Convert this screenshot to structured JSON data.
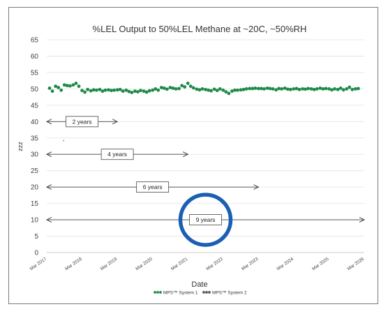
{
  "chart_data": {
    "type": "scatter",
    "title": "%LEL Output to 50%LEL Methane at ~20C, ~50%RH",
    "xlabel": "Date",
    "ylabel": "zzz",
    "ylim": [
      0,
      65
    ],
    "yticks": [
      0,
      5,
      10,
      15,
      20,
      25,
      30,
      35,
      40,
      45,
      50,
      55,
      60,
      65
    ],
    "xlim": [
      2017.17,
      2026.17
    ],
    "xtick_labels": [
      "Mar 2017",
      "Mar 2018",
      "Mar 2019",
      "Mar 2020",
      "Mar 2021",
      "Mar 2022",
      "Mar 2023",
      "Mar 2024",
      "Mar 2025",
      "Mar 2026"
    ],
    "grid": "horizontal",
    "legend_position": "bottom",
    "colors": {
      "series1": "#1e8a4a",
      "series2": "#555555",
      "circle": "#1a5fb4"
    },
    "series": [
      {
        "name": "MPS™ System 1",
        "x": [
          2017.25,
          2017.33,
          2017.42,
          2017.5,
          2017.58,
          2017.67,
          2017.75,
          2017.83,
          2017.92,
          2018.0,
          2018.08,
          2018.17,
          2018.25,
          2018.33,
          2018.42,
          2018.5,
          2018.58,
          2018.67,
          2018.75,
          2018.83,
          2018.92,
          2019.0,
          2019.08,
          2019.17,
          2019.25,
          2019.33,
          2019.42,
          2019.5,
          2019.58,
          2019.67,
          2019.75,
          2019.83,
          2019.92,
          2020.0,
          2020.08,
          2020.17,
          2020.25,
          2020.33,
          2020.42,
          2020.5,
          2020.58,
          2020.67,
          2020.75,
          2020.83,
          2020.92,
          2021.0,
          2021.08,
          2021.17,
          2021.25,
          2021.33,
          2021.42,
          2021.5,
          2021.58,
          2021.67,
          2021.75,
          2021.83,
          2021.92,
          2022.0,
          2022.08,
          2022.17,
          2022.25,
          2022.33,
          2022.42,
          2022.5,
          2022.58,
          2022.67,
          2022.75,
          2022.83,
          2022.92,
          2023.0,
          2023.08,
          2023.17,
          2023.25,
          2023.33,
          2023.42,
          2023.5,
          2023.58,
          2023.67,
          2023.75,
          2023.83,
          2023.92,
          2024.0,
          2024.08,
          2024.17,
          2024.25,
          2024.33,
          2024.42,
          2024.5,
          2024.58,
          2024.67,
          2024.75,
          2024.83,
          2024.92,
          2025.0,
          2025.08,
          2025.17,
          2025.25,
          2025.33,
          2025.42,
          2025.5,
          2025.58,
          2025.67,
          2025.75,
          2025.83,
          2025.92,
          2026.0
        ],
        "y": [
          50.2,
          49.3,
          50.8,
          50.4,
          49.6,
          51.2,
          51.0,
          50.9,
          51.2,
          51.7,
          50.8,
          49.5,
          49.0,
          49.8,
          49.4,
          49.7,
          49.6,
          49.8,
          49.3,
          49.6,
          49.7,
          49.5,
          49.6,
          49.7,
          49.8,
          49.3,
          49.6,
          49.2,
          48.9,
          49.3,
          49.1,
          49.5,
          49.3,
          49.0,
          49.4,
          49.6,
          50.0,
          49.6,
          50.4,
          50.2,
          49.9,
          50.4,
          50.2,
          50.0,
          50.1,
          51.0,
          50.6,
          51.7,
          50.8,
          50.3,
          49.9,
          49.7,
          50.0,
          49.8,
          49.6,
          49.4,
          49.9,
          49.5,
          50.0,
          49.6,
          49.1,
          48.6,
          49.3,
          49.6,
          49.6,
          49.7,
          49.8,
          50.0,
          50.1,
          50.1,
          50.2,
          50.1,
          50.1,
          50.0,
          50.2,
          50.1,
          50.0,
          49.7,
          50.1,
          50.0,
          50.2,
          49.9,
          49.8,
          50.0,
          50.1,
          49.8,
          50.0,
          49.9,
          50.1,
          50.0,
          49.8,
          50.0,
          50.2,
          50.0,
          50.1,
          50.0,
          49.7,
          50.0,
          49.8,
          50.2,
          49.7,
          50.0,
          50.5,
          49.8,
          50.0,
          50.1
        ]
      },
      {
        "name": "MPS™ System 2",
        "x": [
          2017.65
        ],
        "y": [
          34.2
        ]
      }
    ],
    "annotations": [
      {
        "label": "2 years",
        "y": 40,
        "x_start": 2017.17,
        "x_end": 2019.17,
        "label_x": 2018.17
      },
      {
        "label": "4 years",
        "y": 30,
        "x_start": 2017.17,
        "x_end": 2021.17,
        "label_x": 2019.17
      },
      {
        "label": "6 years",
        "y": 20,
        "x_start": 2017.17,
        "x_end": 2023.17,
        "label_x": 2020.17
      },
      {
        "label": "9 years",
        "y": 10,
        "x_start": 2017.17,
        "x_end": 2026.17,
        "label_x": 2021.67
      }
    ],
    "highlight_circle": {
      "x": 2021.67,
      "y": 10
    }
  }
}
